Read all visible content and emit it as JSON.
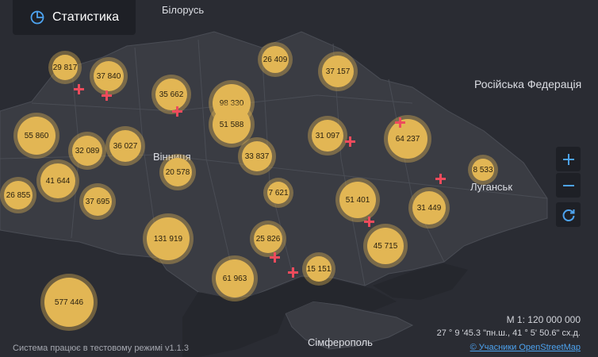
{
  "toolbar": {
    "statistics_label": "Статистика",
    "statistics_icon": "pie-chart-icon"
  },
  "map": {
    "place_labels": [
      "Білорусь",
      "Російська Федерація",
      "Вінниця",
      "Луганськ",
      "Сімферополь"
    ],
    "clusters": [
      "29 817",
      "37 840",
      "26 409",
      "37 157",
      "35 662",
      "98 330",
      "51 588",
      "55 860",
      "32 089",
      "36 027",
      "31 097",
      "64 237",
      "20 578",
      "33 837",
      "8 533",
      "41 644",
      "26 855",
      "37 695",
      "7 621",
      "51 401",
      "31 449",
      "131 919",
      "25 826",
      "45 715",
      "61 963",
      "15 151",
      "577 446"
    ],
    "colors": {
      "background": "#2a2c33",
      "land": "#3a3c43",
      "sea": "#25272d",
      "cluster": "#e2b654",
      "marker": "#ee4b5c",
      "accent": "#4da3f0"
    }
  },
  "controls": {
    "zoom_in_icon": "plus-icon",
    "zoom_out_icon": "minus-icon",
    "refresh_icon": "refresh-icon"
  },
  "footer": {
    "scale": "М 1: 120 000 000",
    "coordinates": "27 ° 9 '45.3 \"пн.ш., 41 ° 5' 50.6\" сх.д.",
    "attribution": "© Учасники OpenStreetMap",
    "status": "Система працює в тестовому режимі v1.1.3"
  }
}
